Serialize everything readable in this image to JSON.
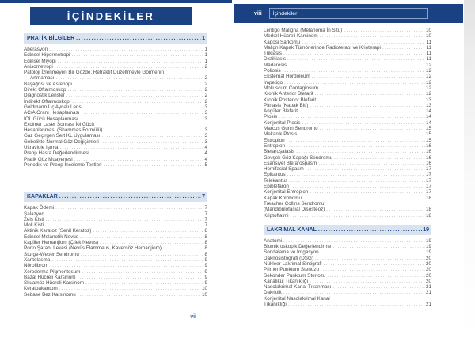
{
  "colors": {
    "navy": "#1a4283",
    "section_header_bg": "#d9e3f0",
    "entry_text": "#4b4b4b",
    "leader_dots": "#9a9a9a",
    "folio_blue": "#3a67a5"
  },
  "left_page": {
    "banner_title": "İÇİNDEKİLER",
    "footer_page_number": "vii",
    "sections": [
      {
        "title": "PRATİK BİLGİLER",
        "page": "1",
        "entries": [
          {
            "label": "Aberasyon",
            "page": "1"
          },
          {
            "label": "Edinsel Hipermetropi",
            "page": "1"
          },
          {
            "label": "Edinsel Miyopi",
            "page": "1"
          },
          {
            "label": "Anisometropi",
            "page": "2"
          },
          {
            "lines": [
              "Patoloji İzlenmeyen Bir Gözde, Refraktif Düzeltmeyle Görmenin",
              "Artmaması"
            ],
            "page": "2",
            "indent_last": true
          },
          {
            "label": "Başağrısı ve Astenopi",
            "page": "2"
          },
          {
            "label": "Direkt Oftalmoskop",
            "page": "2"
          },
          {
            "label": "Diagnostik Lensler",
            "page": "2"
          },
          {
            "label": "İndirekt Oftalmoskopi",
            "page": "2"
          },
          {
            "label": "Goldmann Üç Aynalı Lensi",
            "page": "3"
          },
          {
            "label": "AC/A Oranı Hesaplaması",
            "page": "3"
          },
          {
            "label": "İOL Gücü Hesaplanması",
            "page": "3"
          },
          {
            "lines": [
              "Excimer Laser Sonrası İol Gücü",
              "Hesaplanması (Shammas Formülü)"
            ],
            "page": "3"
          },
          {
            "label": "Gaz Geçirgen Sert KL Uygulaması",
            "page": "3"
          },
          {
            "label": "Gebelikte Normal Göz Değişimleri",
            "page": "3"
          },
          {
            "label": "Ultraviole Işıma",
            "page": "4"
          },
          {
            "label": "Preop Hasta Değerlendirmesi",
            "page": "4"
          },
          {
            "label": "Pratik Göz Muayenesi",
            "page": "4"
          },
          {
            "label": "Periodik ve Preop İnceleme Testleri",
            "page": "5"
          }
        ]
      },
      {
        "title": "KAPAKLAR",
        "page": "7",
        "entries": [
          {
            "label": "Kapak Ödemi",
            "page": "7"
          },
          {
            "label": "Şalazyon",
            "page": "7"
          },
          {
            "label": "Zeis Kisti",
            "page": "7"
          },
          {
            "label": "Moll Kisti",
            "page": "7"
          },
          {
            "label": "Aktinik Keratoz (Senil Keratoz)",
            "page": "8"
          },
          {
            "label": "Edinsel Melanotik Nevus",
            "page": "8"
          },
          {
            "label": "Kapiller Hemanjiom (Çilek Nevus)",
            "page": "8"
          },
          {
            "label": "Porto Şarabı Lekesi (Nevüs Flammeus, Kavernöz Hemanjiom)",
            "page": "8"
          },
          {
            "label": "Sturge-Weber Sendromu",
            "page": "8"
          },
          {
            "label": "Xantelasma",
            "page": "9"
          },
          {
            "label": "Nörofibrom",
            "page": "9"
          },
          {
            "label": "Xeroderma Pigmentosum",
            "page": "9"
          },
          {
            "label": "Bazal Hücreli Karsinom",
            "page": "9"
          },
          {
            "label": "Skuamöz Hücreli Karsinom",
            "page": "9"
          },
          {
            "label": "Keratoakantom",
            "page": "10"
          },
          {
            "label": "Sebase Bez Karsinomu",
            "page": "10"
          }
        ]
      }
    ]
  },
  "right_page": {
    "header": {
      "page_number": "viii",
      "running_title": "İçindekiler"
    },
    "sections": [
      {
        "entries": [
          {
            "label": "Lentigo Maligna (Melanoma İn Situ)",
            "page": "10"
          },
          {
            "label": "Merkel Hücreli Karsinom",
            "page": "10"
          },
          {
            "label": "Kaposi Sarkomu",
            "page": "11"
          },
          {
            "label": "Malign Kapak Tümörlerinde Radioterapi ve Krioterapi",
            "page": "11"
          },
          {
            "label": "Trikiasis",
            "page": "11"
          },
          {
            "label": "Distikiasis",
            "page": "11"
          },
          {
            "label": "Madarosis",
            "page": "12"
          },
          {
            "label": "Poliosis",
            "page": "12"
          },
          {
            "label": "Eksternal Hordoleum",
            "page": "12"
          },
          {
            "label": "İmpetigo",
            "page": "12"
          },
          {
            "label": "Molluscum Contagiosum",
            "page": "12"
          },
          {
            "label": "Kronik Anterior Blefarit",
            "page": "12"
          },
          {
            "label": "Kronik Posterior Blefarit",
            "page": "13"
          },
          {
            "label": "Pitriasis (Kapak Biti)",
            "page": "13"
          },
          {
            "label": "Angüler Blefarit",
            "page": "14"
          },
          {
            "label": "Ptosis",
            "page": "14"
          },
          {
            "label": "Konjenital Ptosis",
            "page": "14"
          },
          {
            "label": "Marcus Gunn Sendromu",
            "page": "15"
          },
          {
            "label": "Mekanik Ptosis",
            "page": "15"
          },
          {
            "label": "Ektropion",
            "page": "15"
          },
          {
            "label": "Entropion",
            "page": "16"
          },
          {
            "label": "Blefaroşalasis",
            "page": "16"
          },
          {
            "label": "Gevşek Göz Kapağı Sendromu",
            "page": "16"
          },
          {
            "label": "Esansiyel Blefarospasm",
            "page": "16"
          },
          {
            "label": "Hemifasial Spasm",
            "page": "17"
          },
          {
            "label": "Epikantus",
            "page": "17"
          },
          {
            "label": "Telekantus",
            "page": "17"
          },
          {
            "label": "Epiblefaron",
            "page": "17"
          },
          {
            "label": "Konjenital Entropion",
            "page": "17"
          },
          {
            "label": "Kapak Kolobomu",
            "page": "18"
          },
          {
            "lines": [
              "Treacher Collins Sendromu",
              "(Mandibulofasial Disosteoz)"
            ],
            "page": "18"
          },
          {
            "label": "Kriptoftalmi",
            "page": "18"
          }
        ]
      },
      {
        "title": "LAKRİMAL KANAL",
        "page": "19",
        "entries": [
          {
            "label": "Anatomi",
            "page": "19"
          },
          {
            "label": "Biomikroskopik Değerlendirme",
            "page": "19"
          },
          {
            "label": "Sondalama ve İrrigasyon",
            "page": "19"
          },
          {
            "label": "Dakriosistografi (DSG)",
            "page": "20"
          },
          {
            "label": "Nükleer Lakrimal Sintigrafi",
            "page": "20"
          },
          {
            "label": "Primer Punktum Stenozu",
            "page": "20"
          },
          {
            "label": "Sekonder Punktum Stenozu",
            "page": "20"
          },
          {
            "label": "Kanalikül Tıkanıklığı",
            "page": "20"
          },
          {
            "label": "Nasolakrimal Kanal Tıkanması",
            "page": "21"
          },
          {
            "label": "Dakriolit",
            "page": "21"
          },
          {
            "lines": [
              "Konjenital Nasolakrimal Kanal",
              "Tıkanıklığı"
            ],
            "page": "21"
          }
        ]
      }
    ]
  }
}
